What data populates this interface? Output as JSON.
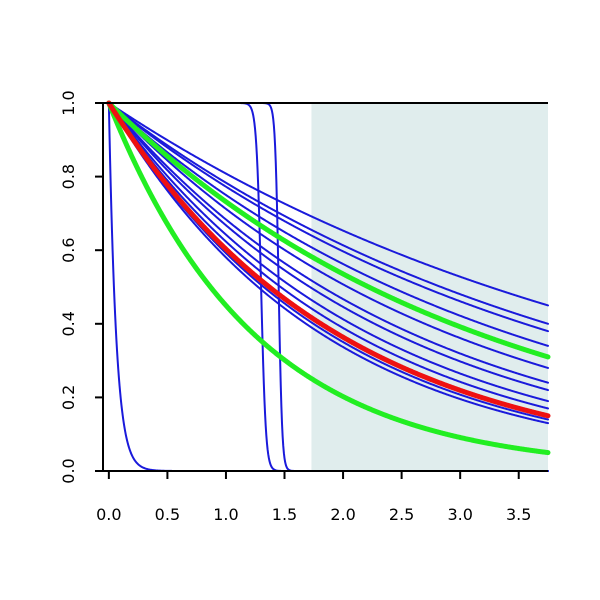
{
  "chart_data": {
    "type": "line",
    "title": "",
    "xlabel": "",
    "ylabel": "",
    "xlim": [
      -0.05,
      3.75
    ],
    "ylim": [
      0,
      1
    ],
    "x_ticks": [
      "0.0",
      "0.5",
      "1.0",
      "1.5",
      "2.0",
      "2.5",
      "3.0",
      "3.5"
    ],
    "y_ticks": [
      "0.0",
      "0.2",
      "0.4",
      "0.6",
      "0.8",
      "1.0"
    ],
    "grid": false,
    "shaded_region": {
      "x_start": 1.73,
      "x_end": 3.75,
      "color": "#e0eded"
    },
    "colors": {
      "blue": "#1a1adb",
      "green": "#22ee22",
      "red": "#ee1111"
    },
    "series": [
      {
        "color": "blue",
        "kind": "exp",
        "end_value": 0.4
      },
      {
        "color": "blue",
        "kind": "exp",
        "end_value": 0.45
      },
      {
        "color": "blue",
        "kind": "exp",
        "end_value": 0.38
      },
      {
        "color": "blue",
        "kind": "exp",
        "end_value": 0.34
      },
      {
        "color": "blue",
        "kind": "exp",
        "end_value": 0.28
      },
      {
        "color": "blue",
        "kind": "exp",
        "end_value": 0.24
      },
      {
        "color": "blue",
        "kind": "exp",
        "end_value": 0.22
      },
      {
        "color": "blue",
        "kind": "exp",
        "end_value": 0.19
      },
      {
        "color": "blue",
        "kind": "exp",
        "end_value": 0.17
      },
      {
        "color": "blue",
        "kind": "exp",
        "end_value": 0.14
      },
      {
        "color": "blue",
        "kind": "exp",
        "end_value": 0.13
      },
      {
        "color": "blue",
        "kind": "steep",
        "k": 16
      },
      {
        "color": "blue",
        "kind": "step",
        "center": 1.3,
        "width": 0.02
      },
      {
        "color": "blue",
        "kind": "step",
        "center": 1.45,
        "width": 0.015
      },
      {
        "color": "green",
        "kind": "exp",
        "end_value": 0.31
      },
      {
        "color": "green",
        "kind": "exp",
        "end_value": 0.05
      },
      {
        "color": "red",
        "kind": "exp",
        "end_value": 0.15
      }
    ]
  }
}
